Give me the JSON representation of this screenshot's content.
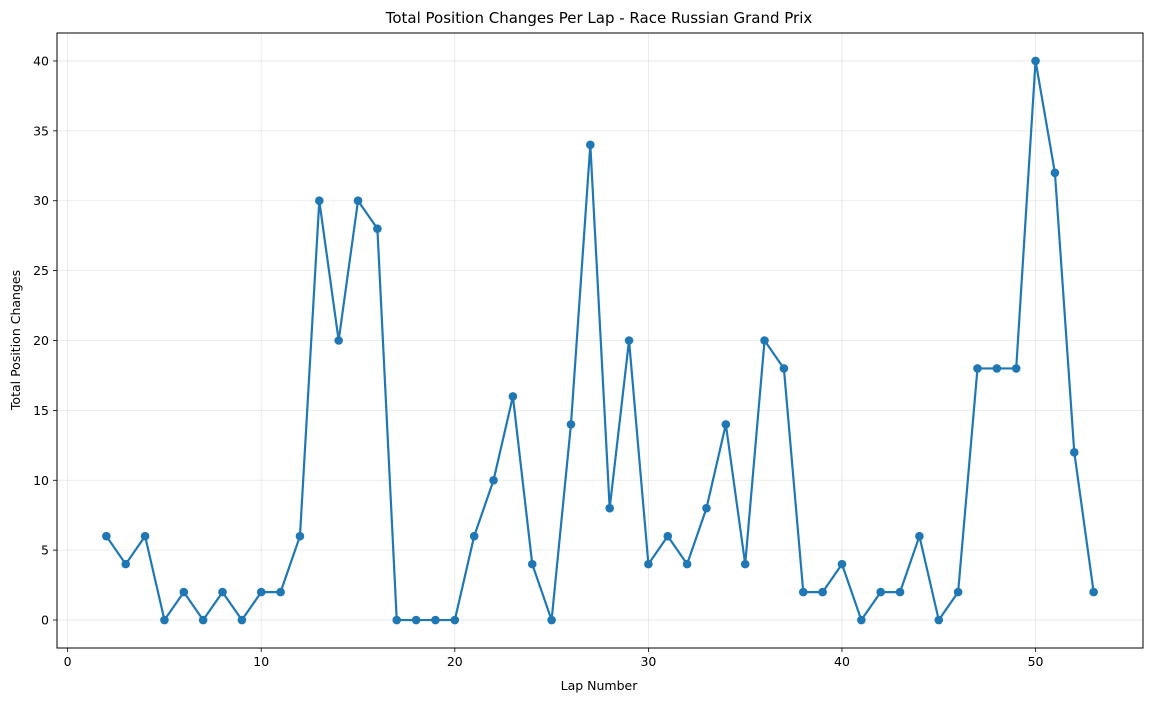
{
  "chart_data": {
    "type": "line",
    "title": "Total Position Changes Per Lap - Race Russian Grand Prix",
    "xlabel": "Lap Number",
    "ylabel": "Total Position Changes",
    "xlim": [
      -0.55,
      55.55
    ],
    "ylim": [
      -2,
      42
    ],
    "xticks": [
      0,
      10,
      20,
      30,
      40,
      50
    ],
    "yticks": [
      0,
      5,
      10,
      15,
      20,
      25,
      30,
      35,
      40
    ],
    "grid": true,
    "color": "#1f77b4",
    "series": [
      {
        "x": [
          2,
          3,
          4,
          5,
          6,
          7,
          8,
          9,
          10,
          11,
          12,
          13,
          14,
          15,
          16,
          17,
          18,
          19,
          20,
          21,
          22,
          23,
          24,
          25,
          26,
          27,
          28,
          29,
          30,
          31,
          32,
          33,
          34,
          35,
          36,
          37,
          38,
          39,
          40,
          41,
          42,
          43,
          44,
          45,
          46,
          47,
          48,
          49,
          50,
          51,
          52,
          53
        ],
        "values": [
          6,
          4,
          6,
          0,
          2,
          0,
          2,
          0,
          2,
          2,
          6,
          30,
          20,
          30,
          28,
          0,
          0,
          0,
          0,
          6,
          10,
          16,
          4,
          0,
          14,
          34,
          8,
          20,
          4,
          6,
          4,
          8,
          14,
          4,
          20,
          18,
          2,
          2,
          4,
          0,
          2,
          2,
          6,
          0,
          2,
          18,
          18,
          18,
          40,
          32,
          12,
          2
        ]
      }
    ]
  }
}
